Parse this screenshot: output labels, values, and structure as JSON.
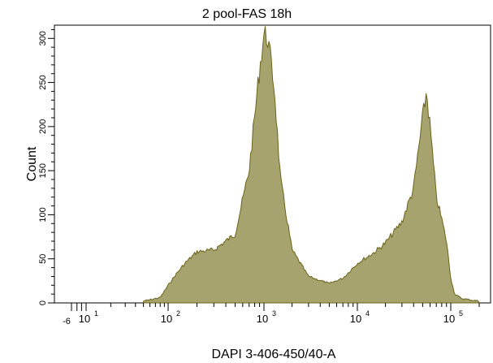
{
  "chart_data": {
    "type": "area",
    "title": "2 pool-FAS 18h",
    "xlabel": "DAPI 3-406-450/40-A",
    "ylabel": "Count",
    "x_scale": "biexponential",
    "ylim": [
      0,
      315
    ],
    "y_ticks": [
      0,
      50,
      100,
      150,
      200,
      250,
      300
    ],
    "x_tick_labels": [
      {
        "base": "-6",
        "exp": ""
      },
      {
        "base": "10",
        "exp": "1"
      },
      {
        "base": "10",
        "exp": "2"
      },
      {
        "base": "10",
        "exp": "3"
      },
      {
        "base": "10",
        "exp": "4"
      },
      {
        "base": "10",
        "exp": "5"
      }
    ],
    "fill_color": "#a7a36e",
    "line_color": "#6b6418",
    "grid": false,
    "series": [
      {
        "x": [
          50,
          80,
          100,
          120,
          150,
          200,
          300,
          500,
          700,
          900,
          1000,
          1100,
          1300,
          1500,
          2000,
          3000,
          5000,
          7000,
          10000,
          15000,
          20000,
          30000,
          40000,
          50000,
          55000,
          60000,
          70000,
          80000,
          90000,
          100000,
          110000,
          130000,
          200000
        ],
        "y": [
          2,
          6,
          20,
          32,
          45,
          58,
          60,
          78,
          150,
          265,
          305,
          300,
          240,
          140,
          60,
          30,
          22,
          28,
          45,
          57,
          68,
          92,
          130,
          210,
          240,
          200,
          120,
          95,
          70,
          28,
          10,
          5,
          2
        ]
      }
    ]
  }
}
